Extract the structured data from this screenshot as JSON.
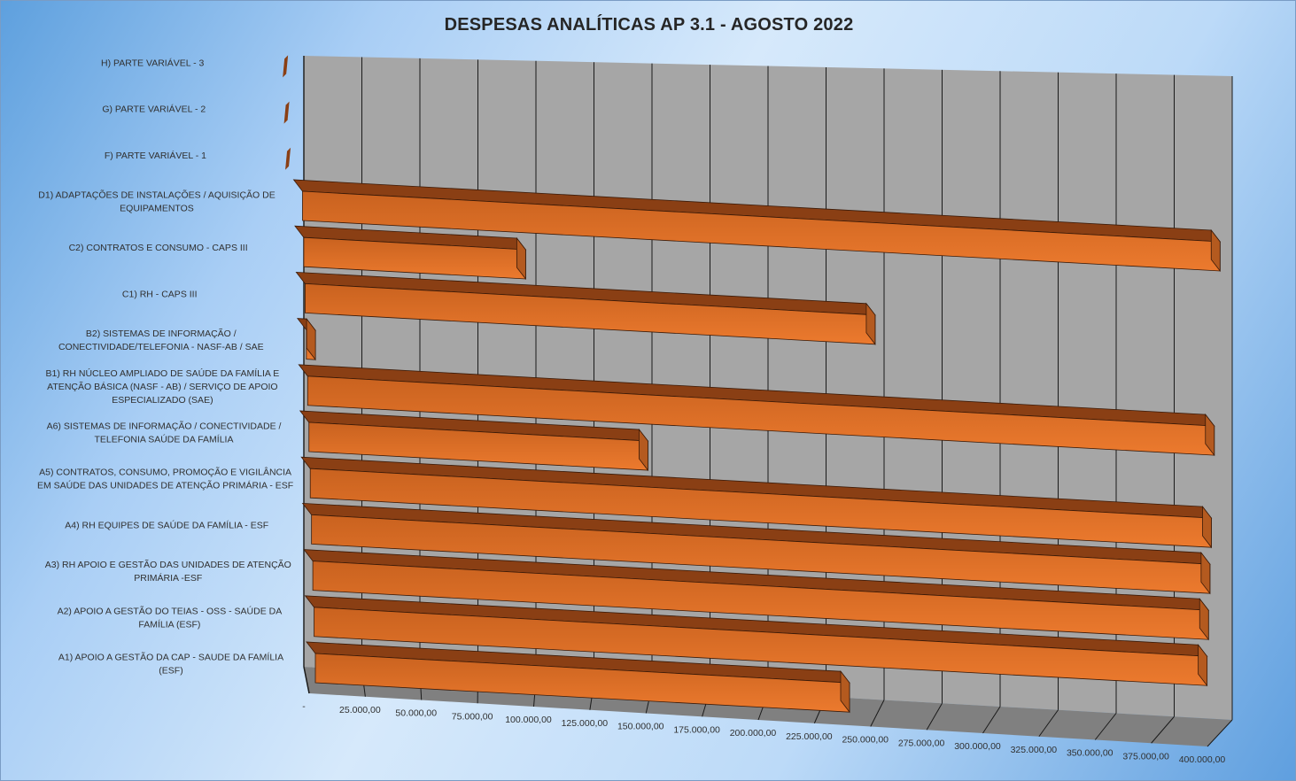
{
  "chart_data": {
    "type": "bar",
    "orientation": "horizontal",
    "three_d": true,
    "title": "DESPESAS ANALÍTICAS AP 3.1 - AGOSTO 2022",
    "xlabel": "",
    "ylabel": "",
    "xlim": [
      0,
      400000
    ],
    "grid": true,
    "legend": "none",
    "categories": [
      "A1) APOIO A GESTÃO DA CAP - SAUDE DA FAMÍLIA\n(ESF)",
      "A2) APOIO A GESTÃO DO TEIAS - OSS - SAÚDE DA\nFAMÍLIA (ESF)",
      "A3) RH APOIO E GESTÃO DAS UNIDADES DE ATENÇÃO\nPRIMÁRIA -ESF",
      "A4) RH EQUIPES DE SAÚDE DA FAMÍLIA - ESF",
      "A5) CONTRATOS, CONSUMO, PROMOÇÃO E VIGILÂNCIA\nEM SAÚDE DAS UNIDADES DE ATENÇÃO PRIMÁRIA - ESF",
      "A6) SISTEMAS DE INFORMAÇÃO / CONECTIVIDADE /\nTELEFONIA SAÚDE DA FAMÍLIA",
      "B1) RH NÚCLEO AMPLIADO DE SAÚDE DA FAMÍLIA E\nATENÇÃO BÁSICA (NASF - AB) / SERVIÇO DE APOIO\nESPECIALIZADO (SAE)",
      "B2) SISTEMAS DE INFORMAÇÃO /\nCONECTIVIDADE/TELEFONIA - NASF-AB / SAE",
      "C1) RH - CAPS III",
      "C2) CONTRATOS E CONSUMO - CAPS III",
      "D1) ADAPTAÇÕES DE INSTALAÇÕES / AQUISIÇÃO DE\nEQUIPAMENTOS",
      "F) PARTE VARIÁVEL - 1",
      "G) PARTE VARIÁVEL - 2",
      "H) PARTE VARIÁVEL - 3"
    ],
    "values": [
      240000,
      400000,
      400000,
      400000,
      400000,
      150000,
      400000,
      4000,
      250000,
      97000,
      400000,
      0,
      0,
      0
    ],
    "tick_labels": [
      "-",
      "25.000,00",
      "50.000,00",
      "75.000,00",
      "100.000,00",
      "125.000,00",
      "150.000,00",
      "175.000,00",
      "200.000,00",
      "225.000,00",
      "250.000,00",
      "275.000,00",
      "300.000,00",
      "325.000,00",
      "350.000,00",
      "375.000,00",
      "400.000,00"
    ],
    "tick_values": [
      0,
      25000,
      50000,
      75000,
      100000,
      125000,
      150000,
      175000,
      200000,
      225000,
      250000,
      275000,
      300000,
      325000,
      350000,
      375000,
      400000
    ],
    "colors": {
      "bar_front": "#ec7a2e",
      "bar_top": "#8a3f14",
      "bar_side": "#b45a1f",
      "wall": "#a6a6a6",
      "floor": "#808080",
      "gridline": "#1a1a1a"
    }
  }
}
